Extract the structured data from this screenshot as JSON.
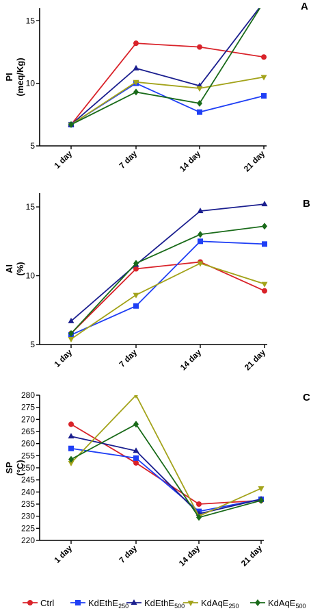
{
  "colors": {
    "Ctrl": "#d9232a",
    "KdEthE250": "#1f3ff5",
    "KdEthE500": "#1b1f8f",
    "KdAqE250": "#a3a31b",
    "KdAqE500": "#1a6b1a"
  },
  "legend": [
    {
      "key": "Ctrl",
      "main": "Ctrl",
      "sub": "",
      "marker": "circle"
    },
    {
      "key": "KdEthE250",
      "main": "KdEthE",
      "sub": "250",
      "marker": "square"
    },
    {
      "key": "KdEthE500",
      "main": "KdEthE",
      "sub": "500",
      "marker": "triangle-up"
    },
    {
      "key": "KdAqE250",
      "main": "KdAqE",
      "sub": "250",
      "marker": "triangle-down"
    },
    {
      "key": "KdAqE500",
      "main": "KdAqE",
      "sub": "500",
      "marker": "diamond"
    }
  ],
  "chart_data": [
    {
      "type": "line",
      "panel_label": "A",
      "title": "",
      "ylabel": "PI",
      "ylabel2": "(meq/Kg)",
      "categories": [
        "1 day",
        "7 day",
        "14 day",
        "21 day"
      ],
      "ylim": [
        5,
        16
      ],
      "yticks": [
        5,
        10,
        15
      ],
      "series": [
        {
          "name": "Ctrl",
          "values": [
            6.7,
            13.2,
            12.9,
            12.1
          ]
        },
        {
          "name": "KdEthE250",
          "values": [
            6.7,
            10.0,
            7.7,
            9.0
          ]
        },
        {
          "name": "KdEthE500",
          "values": [
            6.7,
            11.2,
            9.8,
            16.5
          ]
        },
        {
          "name": "KdAqE250",
          "values": [
            6.7,
            10.1,
            9.6,
            10.5
          ]
        },
        {
          "name": "KdAqE500",
          "values": [
            6.7,
            9.3,
            8.4,
            16.5
          ]
        }
      ]
    },
    {
      "type": "line",
      "panel_label": "B",
      "title": "",
      "ylabel": "AI",
      "ylabel2": "(%)",
      "categories": [
        "1 day",
        "7 day",
        "14 day",
        "21 day"
      ],
      "ylim": [
        5,
        16
      ],
      "yticks": [
        5,
        10,
        15
      ],
      "series": [
        {
          "name": "Ctrl",
          "values": [
            5.8,
            10.5,
            11.0,
            8.9
          ]
        },
        {
          "name": "KdEthE250",
          "values": [
            5.7,
            7.8,
            12.5,
            12.3
          ]
        },
        {
          "name": "KdEthE500",
          "values": [
            6.7,
            10.8,
            14.7,
            15.2
          ]
        },
        {
          "name": "KdAqE250",
          "values": [
            5.4,
            8.6,
            10.9,
            9.4
          ]
        },
        {
          "name": "KdAqE500",
          "values": [
            5.8,
            10.9,
            13.0,
            13.6
          ]
        }
      ]
    },
    {
      "type": "line",
      "panel_label": "C",
      "title": "",
      "ylabel": "SP",
      "ylabel2": "(°C)",
      "categories": [
        "1 day",
        "7 day",
        "14 day",
        "21 day"
      ],
      "ylim": [
        220,
        280
      ],
      "yticks": [
        220,
        225,
        230,
        235,
        240,
        245,
        250,
        255,
        260,
        265,
        270,
        275,
        280
      ],
      "series": [
        {
          "name": "Ctrl",
          "values": [
            268,
            252,
            235,
            236.5
          ]
        },
        {
          "name": "KdEthE250",
          "values": [
            258,
            254,
            232,
            237
          ]
        },
        {
          "name": "KdEthE500",
          "values": [
            263,
            257,
            231,
            237
          ]
        },
        {
          "name": "KdAqE250",
          "values": [
            252,
            280,
            230,
            241.5
          ]
        },
        {
          "name": "KdAqE500",
          "values": [
            253.5,
            268,
            229.5,
            236.5
          ]
        }
      ]
    }
  ]
}
